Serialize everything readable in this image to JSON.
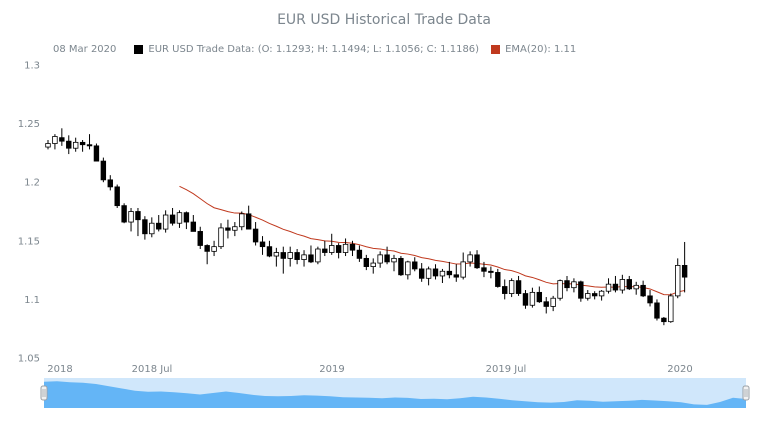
{
  "chart_data": {
    "type": "candlestick",
    "title": "EUR USD Historical Trade Data",
    "legend": {
      "date": "08 Mar 2020",
      "ohlc_series_label": "EUR USD Trade Data: (O: 1.1293; H: 1.1494; L: 1.1056; C: 1.1186)",
      "ema_label": "EMA(20): 1.11",
      "ohlc_color": "#000000",
      "ema_color": "#c0391e",
      "placement": "top-left"
    },
    "y_axis": {
      "ticks": [
        "1.05",
        "1.1",
        "1.15",
        "1.2",
        "1.25",
        "1.3"
      ],
      "ylim": [
        1.05,
        1.3
      ],
      "grid": false
    },
    "x_axis": {
      "ticks": [
        "2018",
        "2018 Jul",
        "2019",
        "2019 Jul",
        "2020"
      ]
    },
    "period": "weekly",
    "start": "2018-01-01",
    "candles": [
      [
        1.23,
        1.236,
        1.228,
        1.233
      ],
      [
        1.233,
        1.241,
        1.228,
        1.239
      ],
      [
        1.238,
        1.246,
        1.231,
        1.235
      ],
      [
        1.235,
        1.24,
        1.224,
        1.229
      ],
      [
        1.229,
        1.238,
        1.226,
        1.234
      ],
      [
        1.234,
        1.236,
        1.226,
        1.232
      ],
      [
        1.232,
        1.241,
        1.228,
        1.231
      ],
      [
        1.231,
        1.233,
        1.218,
        1.218
      ],
      [
        1.218,
        1.221,
        1.2,
        1.202
      ],
      [
        1.202,
        1.206,
        1.193,
        1.196
      ],
      [
        1.196,
        1.198,
        1.178,
        1.18
      ],
      [
        1.18,
        1.182,
        1.165,
        1.166
      ],
      [
        1.166,
        1.178,
        1.158,
        1.175
      ],
      [
        1.175,
        1.178,
        1.154,
        1.168
      ],
      [
        1.168,
        1.171,
        1.151,
        1.156
      ],
      [
        1.156,
        1.17,
        1.153,
        1.165
      ],
      [
        1.165,
        1.172,
        1.158,
        1.16
      ],
      [
        1.16,
        1.176,
        1.157,
        1.172
      ],
      [
        1.172,
        1.178,
        1.163,
        1.165
      ],
      [
        1.165,
        1.176,
        1.161,
        1.174
      ],
      [
        1.174,
        1.175,
        1.16,
        1.166
      ],
      [
        1.166,
        1.172,
        1.158,
        1.158
      ],
      [
        1.158,
        1.162,
        1.143,
        1.146
      ],
      [
        1.146,
        1.147,
        1.13,
        1.141
      ],
      [
        1.141,
        1.15,
        1.137,
        1.145
      ],
      [
        1.145,
        1.165,
        1.143,
        1.161
      ],
      [
        1.161,
        1.168,
        1.152,
        1.159
      ],
      [
        1.159,
        1.166,
        1.154,
        1.162
      ],
      [
        1.162,
        1.175,
        1.159,
        1.173
      ],
      [
        1.173,
        1.18,
        1.162,
        1.16
      ],
      [
        1.16,
        1.166,
        1.146,
        1.149
      ],
      [
        1.149,
        1.154,
        1.138,
        1.145
      ],
      [
        1.145,
        1.15,
        1.136,
        1.137
      ],
      [
        1.137,
        1.144,
        1.128,
        1.14
      ],
      [
        1.14,
        1.145,
        1.122,
        1.135
      ],
      [
        1.135,
        1.145,
        1.128,
        1.14
      ],
      [
        1.14,
        1.143,
        1.13,
        1.134
      ],
      [
        1.134,
        1.142,
        1.128,
        1.138
      ],
      [
        1.138,
        1.146,
        1.131,
        1.132
      ],
      [
        1.132,
        1.145,
        1.13,
        1.143
      ],
      [
        1.143,
        1.15,
        1.137,
        1.14
      ],
      [
        1.14,
        1.156,
        1.138,
        1.146
      ],
      [
        1.146,
        1.148,
        1.135,
        1.14
      ],
      [
        1.14,
        1.152,
        1.137,
        1.147
      ],
      [
        1.147,
        1.15,
        1.137,
        1.142
      ],
      [
        1.142,
        1.146,
        1.132,
        1.135
      ],
      [
        1.135,
        1.138,
        1.125,
        1.128
      ],
      [
        1.128,
        1.135,
        1.122,
        1.131
      ],
      [
        1.131,
        1.141,
        1.127,
        1.138
      ],
      [
        1.138,
        1.145,
        1.13,
        1.132
      ],
      [
        1.132,
        1.138,
        1.124,
        1.135
      ],
      [
        1.135,
        1.137,
        1.12,
        1.121
      ],
      [
        1.121,
        1.133,
        1.117,
        1.132
      ],
      [
        1.132,
        1.136,
        1.124,
        1.126
      ],
      [
        1.126,
        1.131,
        1.115,
        1.118
      ],
      [
        1.118,
        1.128,
        1.112,
        1.126
      ],
      [
        1.126,
        1.13,
        1.117,
        1.12
      ],
      [
        1.12,
        1.126,
        1.114,
        1.124
      ],
      [
        1.124,
        1.132,
        1.118,
        1.121
      ],
      [
        1.121,
        1.13,
        1.115,
        1.119
      ],
      [
        1.119,
        1.14,
        1.117,
        1.132
      ],
      [
        1.132,
        1.141,
        1.128,
        1.138
      ],
      [
        1.138,
        1.142,
        1.126,
        1.127
      ],
      [
        1.127,
        1.132,
        1.119,
        1.124
      ],
      [
        1.124,
        1.128,
        1.118,
        1.123
      ],
      [
        1.123,
        1.126,
        1.11,
        1.111
      ],
      [
        1.111,
        1.117,
        1.1,
        1.105
      ],
      [
        1.105,
        1.118,
        1.102,
        1.116
      ],
      [
        1.116,
        1.12,
        1.103,
        1.105
      ],
      [
        1.105,
        1.108,
        1.092,
        1.095
      ],
      [
        1.095,
        1.11,
        1.093,
        1.106
      ],
      [
        1.106,
        1.111,
        1.097,
        1.098
      ],
      [
        1.098,
        1.102,
        1.088,
        1.094
      ],
      [
        1.094,
        1.103,
        1.09,
        1.101
      ],
      [
        1.101,
        1.117,
        1.099,
        1.116
      ],
      [
        1.116,
        1.12,
        1.107,
        1.11
      ],
      [
        1.11,
        1.118,
        1.106,
        1.115
      ],
      [
        1.115,
        1.116,
        1.098,
        1.101
      ],
      [
        1.101,
        1.108,
        1.099,
        1.105
      ],
      [
        1.105,
        1.107,
        1.1,
        1.103
      ],
      [
        1.103,
        1.108,
        1.099,
        1.107
      ],
      [
        1.107,
        1.118,
        1.105,
        1.113
      ],
      [
        1.113,
        1.12,
        1.106,
        1.108
      ],
      [
        1.108,
        1.121,
        1.105,
        1.117
      ],
      [
        1.117,
        1.12,
        1.108,
        1.109
      ],
      [
        1.109,
        1.115,
        1.104,
        1.112
      ],
      [
        1.112,
        1.116,
        1.102,
        1.103
      ],
      [
        1.103,
        1.108,
        1.094,
        1.097
      ],
      [
        1.097,
        1.1,
        1.082,
        1.084
      ],
      [
        1.084,
        1.085,
        1.078,
        1.081
      ],
      [
        1.081,
        1.105,
        1.08,
        1.103
      ],
      [
        1.103,
        1.135,
        1.101,
        1.129
      ],
      [
        1.129,
        1.149,
        1.106,
        1.119
      ]
    ],
    "ema": {
      "start_index": 19,
      "period": 20
    },
    "scroller": {
      "fill_color": "#64b5f6",
      "selection_color": "#d0e7fb",
      "values": [
        1.235,
        1.238,
        1.232,
        1.228,
        1.22,
        1.205,
        1.19,
        1.175,
        1.168,
        1.17,
        1.165,
        1.158,
        1.15,
        1.16,
        1.17,
        1.16,
        1.148,
        1.14,
        1.138,
        1.14,
        1.145,
        1.143,
        1.138,
        1.132,
        1.13,
        1.128,
        1.125,
        1.13,
        1.127,
        1.12,
        1.122,
        1.118,
        1.125,
        1.135,
        1.13,
        1.122,
        1.112,
        1.105,
        1.098,
        1.096,
        1.1,
        1.112,
        1.108,
        1.102,
        1.105,
        1.108,
        1.114,
        1.11,
        1.105,
        1.098,
        1.084,
        1.081,
        1.1,
        1.128,
        1.12
      ]
    }
  }
}
